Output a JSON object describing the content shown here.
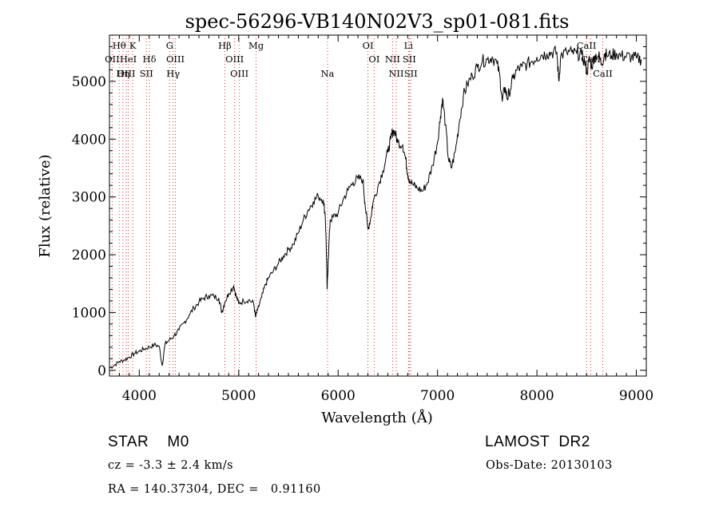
{
  "chart_data": {
    "type": "line",
    "title": "spec-56296-VB140N02V3_sp01-081.fits",
    "xlabel": "Wavelength (Å)",
    "ylabel": "Flux (relative)",
    "xlim": [
      3700,
      9100
    ],
    "ylim": [
      -100,
      5800
    ],
    "x_ticks": [
      4000,
      5000,
      6000,
      7000,
      8000,
      9000
    ],
    "y_ticks": [
      0,
      1000,
      2000,
      3000,
      4000,
      5000
    ],
    "grid": false,
    "line_color": "#000000",
    "line_marker_color": "#e03030",
    "series": [
      {
        "points": [
          [
            3700,
            40
          ],
          [
            3750,
            90
          ],
          [
            3800,
            150
          ],
          [
            3850,
            180
          ],
          [
            3900,
            230
          ],
          [
            3950,
            290
          ],
          [
            4000,
            330
          ],
          [
            4050,
            370
          ],
          [
            4100,
            400
          ],
          [
            4150,
            440
          ],
          [
            4200,
            420
          ],
          [
            4230,
            80
          ],
          [
            4260,
            460
          ],
          [
            4300,
            520
          ],
          [
            4350,
            600
          ],
          [
            4400,
            700
          ],
          [
            4450,
            820
          ],
          [
            4500,
            950
          ],
          [
            4550,
            1080
          ],
          [
            4600,
            1180
          ],
          [
            4650,
            1250
          ],
          [
            4700,
            1290
          ],
          [
            4750,
            1280
          ],
          [
            4800,
            1250
          ],
          [
            4830,
            1000
          ],
          [
            4860,
            1180
          ],
          [
            4900,
            1330
          ],
          [
            4950,
            1460
          ],
          [
            4975,
            1280
          ],
          [
            5000,
            1160
          ],
          [
            5050,
            1200
          ],
          [
            5100,
            1220
          ],
          [
            5150,
            1160
          ],
          [
            5170,
            920
          ],
          [
            5190,
            1040
          ],
          [
            5230,
            1260
          ],
          [
            5270,
            1480
          ],
          [
            5300,
            1600
          ],
          [
            5350,
            1720
          ],
          [
            5400,
            1850
          ],
          [
            5450,
            1980
          ],
          [
            5500,
            2090
          ],
          [
            5550,
            2180
          ],
          [
            5600,
            2380
          ],
          [
            5650,
            2600
          ],
          [
            5700,
            2780
          ],
          [
            5750,
            2920
          ],
          [
            5800,
            3020
          ],
          [
            5850,
            2950
          ],
          [
            5870,
            2700
          ],
          [
            5880,
            2200
          ],
          [
            5890,
            1400
          ],
          [
            5900,
            1900
          ],
          [
            5920,
            2600
          ],
          [
            5950,
            2650
          ],
          [
            6000,
            2720
          ],
          [
            6050,
            2950
          ],
          [
            6100,
            3120
          ],
          [
            6150,
            3250
          ],
          [
            6200,
            3320
          ],
          [
            6250,
            3300
          ],
          [
            6270,
            2900
          ],
          [
            6300,
            2440
          ],
          [
            6330,
            2650
          ],
          [
            6350,
            2900
          ],
          [
            6400,
            3180
          ],
          [
            6450,
            3450
          ],
          [
            6500,
            3780
          ],
          [
            6530,
            4000
          ],
          [
            6550,
            4150
          ],
          [
            6570,
            4120
          ],
          [
            6600,
            3950
          ],
          [
            6650,
            3900
          ],
          [
            6680,
            3650
          ],
          [
            6700,
            3400
          ],
          [
            6720,
            3280
          ],
          [
            6760,
            3200
          ],
          [
            6800,
            3150
          ],
          [
            6850,
            3100
          ],
          [
            6900,
            3250
          ],
          [
            6950,
            3550
          ],
          [
            7000,
            3950
          ],
          [
            7030,
            4400
          ],
          [
            7050,
            4700
          ],
          [
            7080,
            4250
          ],
          [
            7110,
            3650
          ],
          [
            7140,
            3500
          ],
          [
            7180,
            3800
          ],
          [
            7220,
            4300
          ],
          [
            7260,
            4750
          ],
          [
            7300,
            4950
          ],
          [
            7350,
            5100
          ],
          [
            7400,
            5250
          ],
          [
            7450,
            5350
          ],
          [
            7500,
            5380
          ],
          [
            7550,
            5420
          ],
          [
            7600,
            5300
          ],
          [
            7630,
            5050
          ],
          [
            7650,
            4650
          ],
          [
            7680,
            4900
          ],
          [
            7700,
            4700
          ],
          [
            7720,
            4800
          ],
          [
            7760,
            5050
          ],
          [
            7800,
            5200
          ],
          [
            7850,
            5250
          ],
          [
            7900,
            5300
          ],
          [
            7950,
            5350
          ],
          [
            8000,
            5420
          ],
          [
            8050,
            5460
          ],
          [
            8100,
            5480
          ],
          [
            8150,
            5500
          ],
          [
            8200,
            5500
          ],
          [
            8220,
            5000
          ],
          [
            8240,
            5450
          ],
          [
            8300,
            5500
          ],
          [
            8350,
            5500
          ],
          [
            8400,
            5480
          ],
          [
            8450,
            5460
          ],
          [
            8490,
            5300
          ],
          [
            8500,
            5150
          ],
          [
            8530,
            5400
          ],
          [
            8550,
            5250
          ],
          [
            8580,
            5450
          ],
          [
            8620,
            5450
          ],
          [
            8650,
            5300
          ],
          [
            8680,
            5480
          ],
          [
            8700,
            5460
          ],
          [
            8750,
            5450
          ],
          [
            8800,
            5480
          ],
          [
            8850,
            5440
          ],
          [
            8900,
            5430
          ],
          [
            8950,
            5420
          ],
          [
            9000,
            5400
          ],
          [
            9050,
            5380
          ]
        ]
      }
    ],
    "line_labels": [
      {
        "text": "Hθ",
        "x": 3798,
        "row": 0
      },
      {
        "text": "K",
        "x": 3934,
        "row": 0
      },
      {
        "text": "G",
        "x": 4305,
        "row": 0
      },
      {
        "text": "Hβ",
        "x": 4861,
        "row": 0
      },
      {
        "text": "Mg",
        "x": 5175,
        "row": 0
      },
      {
        "text": "OI",
        "x": 6300,
        "row": 0
      },
      {
        "text": "Li",
        "x": 6708,
        "row": 0
      },
      {
        "text": "CaII",
        "x": 8498,
        "row": 0
      },
      {
        "text": "OII",
        "x": 3727,
        "row": 1
      },
      {
        "text": "HeI",
        "x": 3889,
        "row": 1
      },
      {
        "text": "Hδ",
        "x": 4102,
        "row": 1
      },
      {
        "text": "OIII",
        "x": 4363,
        "row": 1
      },
      {
        "text": "OIII",
        "x": 4959,
        "row": 1
      },
      {
        "text": "OI",
        "x": 6363,
        "row": 1
      },
      {
        "text": "NII",
        "x": 6548,
        "row": 1
      },
      {
        "text": "SII",
        "x": 6716,
        "row": 1
      },
      {
        "text": "CaII",
        "x": 8542,
        "row": 1
      },
      {
        "text": "OIII",
        "x": 3869,
        "row": 2
      },
      {
        "text": "Hη",
        "x": 3835,
        "row": 2
      },
      {
        "text": "SII",
        "x": 4072,
        "row": 2
      },
      {
        "text": "Hγ",
        "x": 4340,
        "row": 2
      },
      {
        "text": "OIII",
        "x": 5007,
        "row": 2
      },
      {
        "text": "Na",
        "x": 5893,
        "row": 2
      },
      {
        "text": "NII",
        "x": 6584,
        "row": 2
      },
      {
        "text": "SII",
        "x": 6731,
        "row": 2
      },
      {
        "text": "CaII",
        "x": 8662,
        "row": 2
      }
    ]
  },
  "footer": {
    "object_type": "STAR    M0",
    "survey": "LAMOST  DR2",
    "redshift": "cz = -3.3 ± 2.4 km/s",
    "obs_date": "Obs-Date: 20130103",
    "coords": "RA = 140.37304, DEC =   0.91160"
  }
}
